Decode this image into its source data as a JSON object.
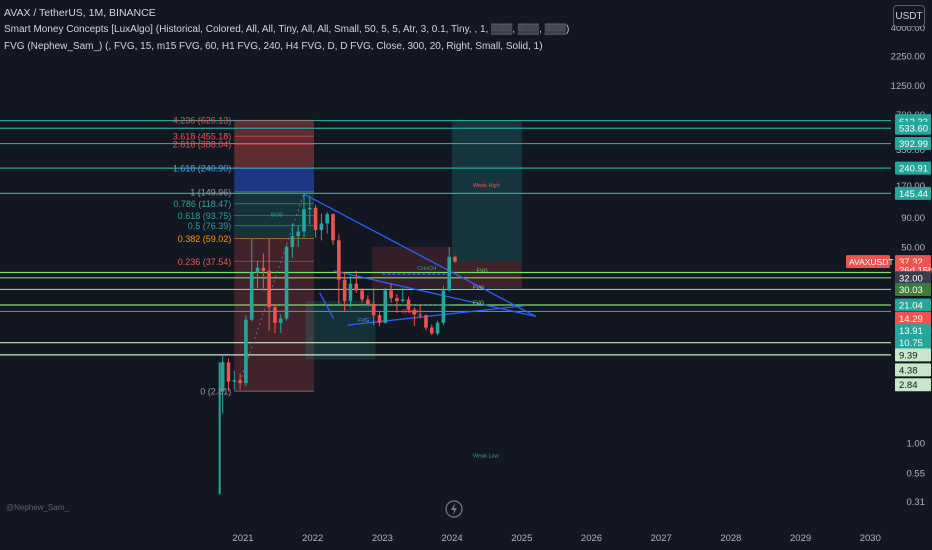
{
  "header": {
    "line1": "AVAX / TetherUS, 1M, BINANCE",
    "line2": "Smart Money Concepts [LuxAlgo] (Historical, Colored, All, All, Tiny, All, All, Small, 50, 5, 5, Atr, 3, 0.1, Tiny, , 1, ▒▒▒, ▒▒▒, ▒▒▒)",
    "line3": "FVG (Nephew_Sam_) (, FVG, 15, m15 FVG, 60, H1 FVG, 240, H4 FVG, D, D FVG, Close, 300, 20, Right, Small, Solid, 1)"
  },
  "currency_button": "USDT",
  "watermark": "@Nephew_Sam_",
  "colors": {
    "background": "#131722",
    "up": "#26a69a",
    "down": "#ef5350",
    "text": "#d1d4dc",
    "green_line": "#7ddc6a",
    "teal_line": "#26a69a",
    "trend_line": "#2962ff"
  },
  "chart_data": {
    "type": "candlestick",
    "symbol": "AVAXUSDT",
    "y_scale": "log",
    "ylim": [
      0.27,
      5500
    ],
    "x_tick_labels": [
      "2021",
      "2022",
      "2023",
      "2024",
      "2025",
      "2026",
      "2027",
      "2028",
      "2029",
      "2030"
    ],
    "y_tick_labels": [
      {
        "label": "4000.00",
        "value": 4000
      },
      {
        "label": "2250.00",
        "value": 2250
      },
      {
        "label": "1250.00",
        "value": 1250
      },
      {
        "label": "700.00",
        "value": 700
      },
      {
        "label": "350.00",
        "value": 350
      },
      {
        "label": "170.00",
        "value": 170
      },
      {
        "label": "90.00",
        "value": 90
      },
      {
        "label": "50.00",
        "value": 50
      },
      {
        "label": "1.00",
        "value": 1.0
      },
      {
        "label": "0.55",
        "value": 0.55
      },
      {
        "label": "0.31",
        "value": 0.31
      }
    ],
    "price_tags": [
      {
        "label": "621.77",
        "value": 621.77,
        "color": "#26a69a"
      },
      {
        "label": "612.33",
        "value": 612.33,
        "color": "#26a69a"
      },
      {
        "label": "533.60",
        "value": 533.6,
        "color": "#26a69a"
      },
      {
        "label": "392.99",
        "value": 392.99,
        "color": "#26a69a"
      },
      {
        "label": "240.91",
        "value": 240.91,
        "color": "#26a69a"
      },
      {
        "label": "145.44",
        "value": 145.44,
        "color": "#26a69a"
      },
      {
        "label": "37.32",
        "value": 37.32,
        "color": "#ef5350"
      },
      {
        "label": "26d 15h",
        "value": 31.5,
        "color": "#ef5350"
      },
      {
        "label": "32.00",
        "value": 27.0,
        "color": "#3a3e4a"
      },
      {
        "label": "30.03",
        "value": 21.4,
        "color": "#3f7a3a"
      },
      {
        "label": "21.04",
        "value": 15.7,
        "color": "#26a69a"
      },
      {
        "label": "14.29",
        "value": 12.0,
        "color": "#ef5350"
      },
      {
        "label": "13.91",
        "value": 9.4,
        "color": "#26a69a"
      },
      {
        "label": "10.75",
        "value": 7.4,
        "color": "#26a69a"
      },
      {
        "label": "9.39",
        "value": 5.8,
        "color": "#c8e6c9"
      },
      {
        "label": "4.38",
        "value": 4.3,
        "color": "#c8e6c9"
      },
      {
        "label": "2.84",
        "value": 3.2,
        "color": "#c8e6c9"
      }
    ],
    "symbol_tag": "AVAXUSDT",
    "fib_levels": [
      {
        "label": "4.236 (626.13)",
        "value": 626.13,
        "color": "#ef5350"
      },
      {
        "label": "3.618 (455.18)",
        "value": 455.18,
        "color": "#ef5350"
      },
      {
        "label": "2.618 (388.04)",
        "value": 388.04,
        "color": "#ef5350"
      },
      {
        "label": "1.618 (240.90)",
        "value": 240.9,
        "color": "#5b9cf6"
      },
      {
        "label": "1 (149.96)",
        "value": 149.96,
        "color": "#9598a1"
      },
      {
        "label": "0.786 (118.47)",
        "value": 118.47,
        "color": "#26a69a"
      },
      {
        "label": "0.618 (93.75)",
        "value": 93.75,
        "color": "#26a69a"
      },
      {
        "label": "0.5 (76.39)",
        "value": 76.39,
        "color": "#26a69a"
      },
      {
        "label": "0.382 (59.02)",
        "value": 59.02,
        "color": "#ff9800"
      },
      {
        "label": "0.236 (37.54)",
        "value": 37.54,
        "color": "#ef5350"
      },
      {
        "label": "0 (2.81)",
        "value": 2.81,
        "color": "#9598a1"
      }
    ],
    "horizontal_lines": [
      {
        "value": 621.77,
        "color": "#26a69a"
      },
      {
        "value": 533.6,
        "color": "#26a69a"
      },
      {
        "value": 392.99,
        "color": "#26a69a"
      },
      {
        "value": 240.91,
        "color": "#26a69a"
      },
      {
        "value": 145.44,
        "color": "#26a69a"
      },
      {
        "value": 30.0,
        "color": "#7ddc6a"
      },
      {
        "value": 27.0,
        "color": "#7ddc6a"
      },
      {
        "value": 21.4,
        "color": "#7ddc6a"
      },
      {
        "value": 15.7,
        "color": "#7ddc6a"
      },
      {
        "value": 13.8,
        "color": "#26a69a"
      },
      {
        "value": 7.4,
        "color": "#c8e6c9"
      },
      {
        "value": 5.8,
        "color": "#c8e6c9"
      }
    ],
    "annotations": [
      {
        "text": "Weak High",
        "x": 2024.3,
        "y": 165,
        "color": "#ef5350"
      },
      {
        "text": "Weak Low",
        "x": 2024.3,
        "y": 0.75,
        "color": "#26a69a"
      },
      {
        "text": "FVG",
        "x": 2024.35,
        "y": 30.0,
        "color": "#7ddc6a"
      },
      {
        "text": "FVG",
        "x": 2024.3,
        "y": 21.4,
        "color": "#7ddc6a"
      },
      {
        "text": "FVG",
        "x": 2024.3,
        "y": 15.9,
        "color": "#7ddc6a"
      },
      {
        "text": "FVG",
        "x": 2022.65,
        "y": 11.2,
        "color": "#5b9cf6"
      },
      {
        "text": "CHoCH",
        "x": 2023.5,
        "y": 31.5,
        "color": "#26a69a"
      },
      {
        "text": "CHoCH",
        "x": 2023.28,
        "y": 13.2,
        "color": "#ef5350"
      },
      {
        "text": "BOS",
        "x": 2021.4,
        "y": 92,
        "color": "#26a69a"
      }
    ],
    "candles": [
      {
        "t": "2020-09",
        "o": 2.8,
        "h": 5.8,
        "l": 1.8,
        "c": 5.0
      },
      {
        "t": "2020-10",
        "o": 5.0,
        "h": 5.4,
        "l": 2.8,
        "c": 3.4
      },
      {
        "t": "2020-11",
        "o": 3.4,
        "h": 4.2,
        "l": 2.9,
        "c": 3.5
      },
      {
        "t": "2020-12",
        "o": 3.5,
        "h": 4.0,
        "l": 2.9,
        "c": 3.3
      },
      {
        "t": "2021-01",
        "o": 3.3,
        "h": 12.7,
        "l": 3.1,
        "c": 11.7
      },
      {
        "t": "2021-02",
        "o": 11.7,
        "h": 59.0,
        "l": 11.3,
        "c": 30.0
      },
      {
        "t": "2021-03",
        "o": 30.0,
        "h": 38.0,
        "l": 22.0,
        "c": 33.0
      },
      {
        "t": "2021-04",
        "o": 33.0,
        "h": 44.0,
        "l": 21.0,
        "c": 31.0
      },
      {
        "t": "2021-05",
        "o": 31.0,
        "h": 59.0,
        "l": 9.3,
        "c": 15.0
      },
      {
        "t": "2021-06",
        "o": 15.0,
        "h": 16.0,
        "l": 9.0,
        "c": 11.0
      },
      {
        "t": "2021-07",
        "o": 11.0,
        "h": 13.0,
        "l": 9.0,
        "c": 12.0
      },
      {
        "t": "2021-08",
        "o": 12.0,
        "h": 52.0,
        "l": 11.5,
        "c": 50.0
      },
      {
        "t": "2021-09",
        "o": 50.0,
        "h": 80.0,
        "l": 40.0,
        "c": 62.0
      },
      {
        "t": "2021-10",
        "o": 62.0,
        "h": 76.0,
        "l": 50.0,
        "c": 68.0
      },
      {
        "t": "2021-11",
        "o": 68.0,
        "h": 146.0,
        "l": 60.0,
        "c": 106.0
      },
      {
        "t": "2021-12",
        "o": 106.0,
        "h": 136.0,
        "l": 78.0,
        "c": 109.0
      },
      {
        "t": "2022-01",
        "o": 109.0,
        "h": 116.0,
        "l": 60.0,
        "c": 70.0
      },
      {
        "t": "2022-02",
        "o": 70.0,
        "h": 97.0,
        "l": 57.0,
        "c": 80.0
      },
      {
        "t": "2022-03",
        "o": 80.0,
        "h": 100.0,
        "l": 65.0,
        "c": 96.0
      },
      {
        "t": "2022-04",
        "o": 96.0,
        "h": 98.0,
        "l": 52.0,
        "c": 57.0
      },
      {
        "t": "2022-05",
        "o": 57.0,
        "h": 64.0,
        "l": 16.0,
        "c": 26.0
      },
      {
        "t": "2022-06",
        "o": 26.0,
        "h": 30.0,
        "l": 13.7,
        "c": 17.0
      },
      {
        "t": "2022-07",
        "o": 17.0,
        "h": 28.0,
        "l": 15.0,
        "c": 24.0
      },
      {
        "t": "2022-08",
        "o": 24.0,
        "h": 31.0,
        "l": 20.0,
        "c": 21.0
      },
      {
        "t": "2022-09",
        "o": 21.0,
        "h": 22.0,
        "l": 16.5,
        "c": 17.5
      },
      {
        "t": "2022-10",
        "o": 17.5,
        "h": 19.0,
        "l": 15.5,
        "c": 16.0
      },
      {
        "t": "2022-11",
        "o": 16.0,
        "h": 22.0,
        "l": 10.5,
        "c": 12.8
      },
      {
        "t": "2022-12",
        "o": 12.8,
        "h": 14.0,
        "l": 10.3,
        "c": 11.0
      },
      {
        "t": "2023-01",
        "o": 11.0,
        "h": 22.0,
        "l": 10.8,
        "c": 21.0
      },
      {
        "t": "2023-02",
        "o": 21.0,
        "h": 24.0,
        "l": 16.5,
        "c": 18.0
      },
      {
        "t": "2023-03",
        "o": 18.0,
        "h": 19.5,
        "l": 13.4,
        "c": 17.0
      },
      {
        "t": "2023-04",
        "o": 17.0,
        "h": 22.0,
        "l": 16.5,
        "c": 17.5
      },
      {
        "t": "2023-05",
        "o": 17.5,
        "h": 18.5,
        "l": 13.5,
        "c": 14.3
      },
      {
        "t": "2023-06",
        "o": 14.3,
        "h": 15.0,
        "l": 10.3,
        "c": 13.0
      },
      {
        "t": "2023-07",
        "o": 13.0,
        "h": 15.5,
        "l": 12.0,
        "c": 12.8
      },
      {
        "t": "2023-08",
        "o": 12.8,
        "h": 13.0,
        "l": 9.5,
        "c": 10.0
      },
      {
        "t": "2023-09",
        "o": 10.0,
        "h": 10.6,
        "l": 8.6,
        "c": 8.9
      },
      {
        "t": "2023-10",
        "o": 8.9,
        "h": 11.5,
        "l": 8.6,
        "c": 11.0
      },
      {
        "t": "2023-11",
        "o": 11.0,
        "h": 23.0,
        "l": 10.5,
        "c": 21.0
      },
      {
        "t": "2023-12",
        "o": 21.0,
        "h": 50.0,
        "l": 20.5,
        "c": 41.0
      },
      {
        "t": "2024-01",
        "o": 41.0,
        "h": 42.0,
        "l": 36.5,
        "c": 37.32
      }
    ]
  }
}
